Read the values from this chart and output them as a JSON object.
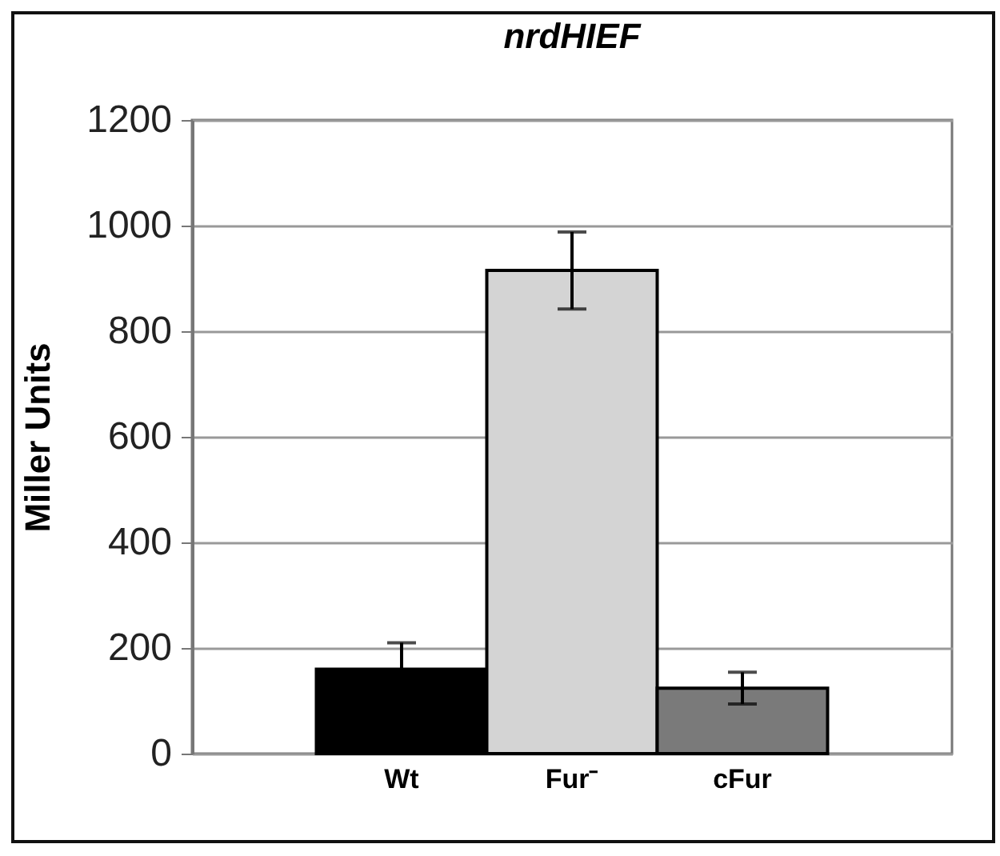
{
  "chart_data": {
    "type": "bar",
    "title": "nrdHIEF",
    "ylabel": "Miller Units",
    "categories": [
      "Wt",
      "Fur⁻",
      "cFur"
    ],
    "values": [
      160,
      915,
      124
    ],
    "errors": [
      50,
      73,
      30
    ],
    "colors": [
      "#000000",
      "#d4d4d4",
      "#7a7a7a"
    ],
    "ylim": [
      0,
      1200
    ],
    "yticks": [
      0,
      200,
      400,
      600,
      800,
      1000,
      1200
    ],
    "grid": "y"
  }
}
